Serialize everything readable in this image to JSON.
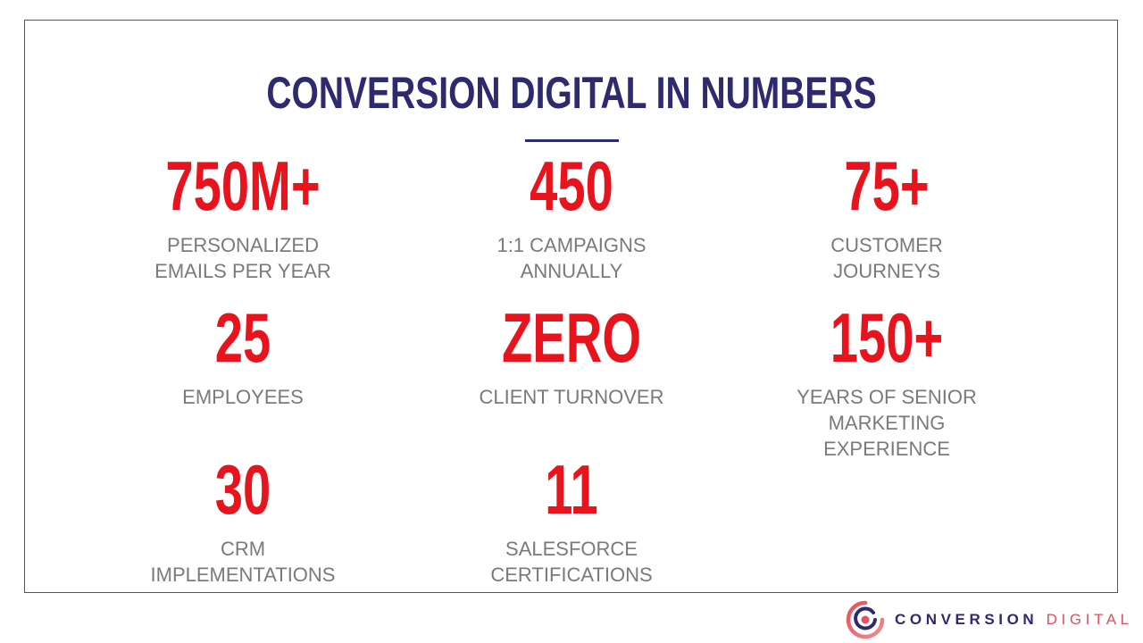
{
  "slide": {
    "title": "CONVERSION DIGITAL IN NUMBERS",
    "stats": [
      {
        "value": "750M+",
        "label": "PERSONALIZED\nEMAILS  PER YEAR"
      },
      {
        "value": "450",
        "label": "1:1 CAMPAIGNS\nANNUALLY"
      },
      {
        "value": "75+",
        "label": "CUSTOMER\nJOURNEYS"
      },
      {
        "value": "25",
        "label": "EMPLOYEES"
      },
      {
        "value": "ZERO",
        "label": "CLIENT TURNOVER"
      },
      {
        "value": "150+",
        "label": "YEARS OF SENIOR\nMARKETING\nEXPERIENCE"
      },
      {
        "value": "30",
        "label": "CRM\nIMPLEMENTATIONS"
      },
      {
        "value": "11",
        "label": "SALESFORCE\nCERTIFICATIONS"
      }
    ]
  },
  "logo": {
    "icon": "conversion-digital-target-icon",
    "word1": "CONVERSION",
    "word2": "DIGITAL"
  },
  "colors": {
    "title": "#2d2a6e",
    "value": "#e8141d",
    "label": "#7a7a7a",
    "logo_primary": "#2d2a6e",
    "logo_accent": "#e0505f"
  }
}
